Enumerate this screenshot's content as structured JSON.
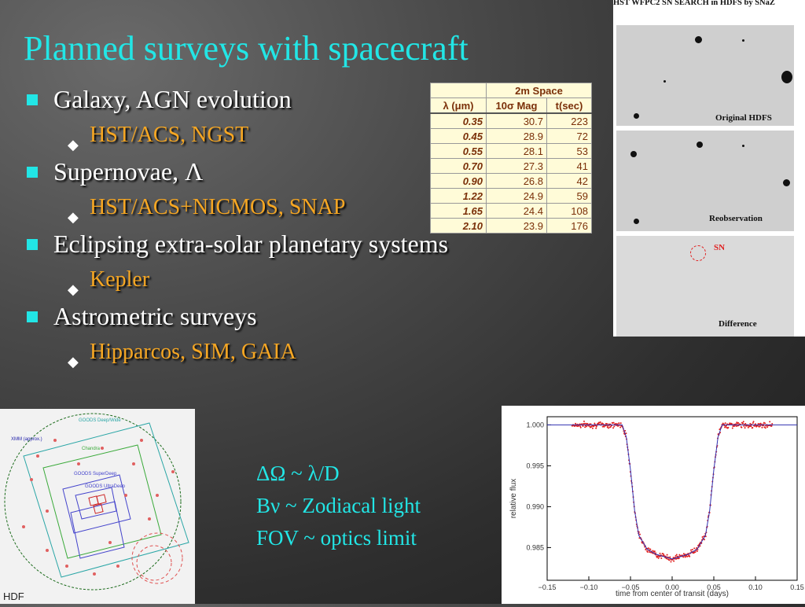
{
  "title": "Planned surveys with spacecraft",
  "bullets": [
    {
      "text": "Galaxy, AGN evolution",
      "sub": "HST/ACS, NGST"
    },
    {
      "text": "Supernovae, Λ",
      "sub": "HST/ACS+NICMOS, SNAP"
    },
    {
      "text": "Eclipsing extra-solar planetary systems",
      "sub": "Kepler"
    },
    {
      "text": "Astrometric surveys",
      "sub": "Hipparcos, SIM, GAIA"
    }
  ],
  "table": {
    "group_header": "2m Space",
    "col_wavelength": "λ (μm)",
    "col_mag": "10σ Mag",
    "col_time": "t(sec)",
    "rows": [
      {
        "wl": "0.35",
        "mag": "30.7",
        "t": "223"
      },
      {
        "wl": "0.45",
        "mag": "28.9",
        "t": "72"
      },
      {
        "wl": "0.55",
        "mag": "28.1",
        "t": "53"
      },
      {
        "wl": "0.70",
        "mag": "27.3",
        "t": "41"
      },
      {
        "wl": "0.90",
        "mag": "26.8",
        "t": "42"
      },
      {
        "wl": "1.22",
        "mag": "24.9",
        "t": "59"
      },
      {
        "wl": "1.65",
        "mag": "24.4",
        "t": "108"
      },
      {
        "wl": "2.10",
        "mag": "23.9",
        "t": "176"
      }
    ]
  },
  "hst_panel": {
    "caption": "HST WFPC2 SN SEARCH in HDFS by SNaZ",
    "label_original": "Original HDFS",
    "label_reobs": "Reobservation",
    "label_sn": "SN",
    "label_diff": "Difference"
  },
  "hdf_image": {
    "corner_label": "HDF",
    "labels": [
      "GOODS Deep/Wide",
      "XMM (approx.)",
      "Chandra",
      "GOODS SuperDeep",
      "GOODS UltraDeep"
    ]
  },
  "notes": [
    "ΔΩ ~ λ/D",
    "Bν ~ Zodiacal light",
    "FOV ~ optics limit"
  ],
  "chart_data": {
    "type": "scatter",
    "title": "",
    "xlabel": "time from center of transit (days)",
    "ylabel": "relative flux",
    "xlim": [
      -0.15,
      0.15
    ],
    "ylim": [
      0.981,
      1.001
    ],
    "xticks": [
      "-0.15",
      "-0.10",
      "-0.05",
      "0.00",
      "0.05",
      "0.10",
      "0.15"
    ],
    "yticks": [
      "1.000",
      "0.995",
      "0.990",
      "0.985"
    ],
    "model": {
      "x": [
        -0.15,
        -0.06,
        -0.055,
        -0.05,
        -0.045,
        -0.04,
        -0.03,
        -0.02,
        0.0,
        0.02,
        0.03,
        0.04,
        0.045,
        0.05,
        0.055,
        0.06,
        0.15
      ],
      "y": [
        1.0,
        1.0,
        0.9985,
        0.9945,
        0.9895,
        0.9865,
        0.9848,
        0.9842,
        0.9836,
        0.9842,
        0.9848,
        0.9865,
        0.9895,
        0.9945,
        0.9985,
        1.0,
        1.0
      ]
    },
    "points_x_range": [
      -0.12,
      0.12
    ],
    "point_color": "#e02020",
    "line_color": "#3030b0"
  },
  "colors": {
    "accent": "#22e6e6",
    "sub_bullet": "#f5a623"
  }
}
